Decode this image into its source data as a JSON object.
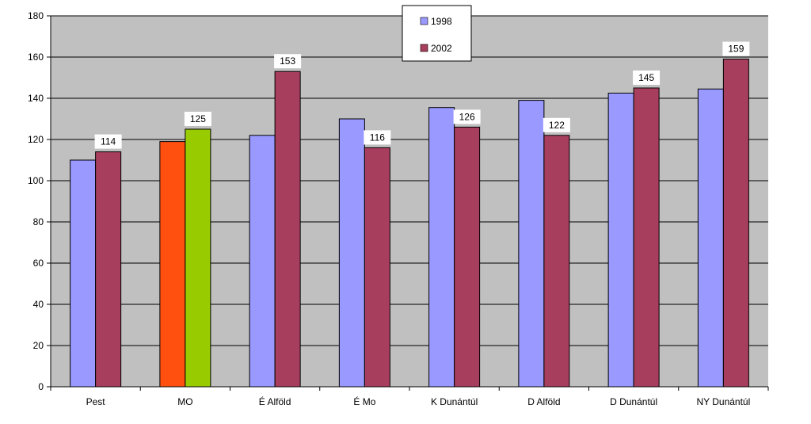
{
  "chart_data": {
    "type": "bar",
    "title": "",
    "xlabel": "",
    "ylabel": "",
    "ylim": [
      0,
      180
    ],
    "yticks": [
      0,
      20,
      40,
      60,
      80,
      100,
      120,
      140,
      160,
      180
    ],
    "grid": true,
    "legend_position": "top-center",
    "plot_background": "#c0c0c0",
    "categories": [
      "Pest",
      "MO",
      "É Alföld",
      "É Mo",
      "K Dunántúl",
      "D Alföld",
      "D Dunántúl",
      "NY Dunántúl"
    ],
    "series": [
      {
        "name": "1998",
        "color": "#9999ff",
        "values": [
          110,
          119,
          122,
          130,
          135.5,
          139,
          142.5,
          144.5
        ],
        "data_labels": [
          null,
          null,
          null,
          null,
          null,
          null,
          null,
          null
        ],
        "highlight_colors": [
          null,
          "#ff5010",
          null,
          null,
          null,
          null,
          null,
          null
        ]
      },
      {
        "name": "2002",
        "color": "#a83e5e",
        "values": [
          114,
          125,
          153,
          116,
          126,
          122,
          145,
          159
        ],
        "data_labels": [
          "114",
          "125",
          "153",
          "116",
          "126",
          "122",
          "145",
          "159"
        ],
        "highlight_colors": [
          null,
          "#99cc00",
          null,
          null,
          null,
          null,
          null,
          null
        ]
      }
    ]
  }
}
